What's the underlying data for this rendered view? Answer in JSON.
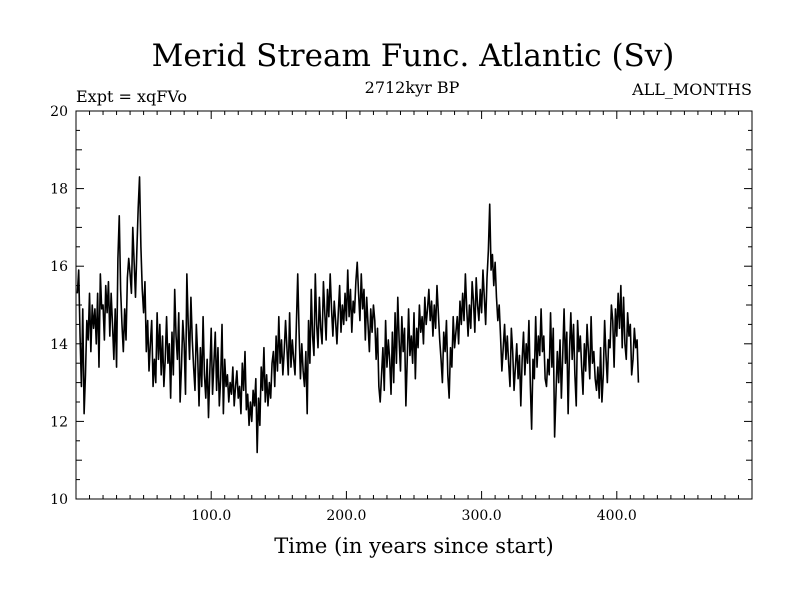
{
  "chart_data": {
    "type": "line",
    "title": "Merid Stream Func. Atlantic (Sv)",
    "experiment_label": "Expt = xqFVo",
    "period_label": "2712kyr BP",
    "months_label": "ALL_MONTHS",
    "xlabel": "Time (in years since start)",
    "ylabel": "",
    "xlim": [
      0,
      500
    ],
    "ylim": [
      10,
      20
    ],
    "x_ticks": [
      100,
      200,
      300,
      400
    ],
    "x_tick_labels": [
      "100.0",
      "200.0",
      "300.0",
      "400.0"
    ],
    "y_ticks": [
      10,
      12,
      14,
      16,
      18,
      20
    ],
    "y_tick_labels": [
      "10",
      "12",
      "14",
      "16",
      "18",
      "20"
    ],
    "series": [
      {
        "name": "Merid Stream Func. Atlantic",
        "x_start": 1,
        "x_step": 1,
        "values": [
          15.3,
          15.9,
          14.2,
          12.9,
          14.9,
          12.2,
          13.2,
          14.6,
          14.1,
          15.3,
          13.8,
          15.0,
          14.4,
          14.9,
          14.0,
          15.3,
          13.4,
          15.8,
          14.9,
          15.0,
          14.1,
          15.5,
          14.8,
          15.6,
          14.2,
          15.3,
          14.5,
          13.6,
          14.9,
          13.4,
          16.2,
          17.3,
          15.4,
          14.5,
          13.8,
          14.9,
          14.1,
          15.7,
          16.2,
          15.8,
          15.3,
          17.0,
          16.1,
          15.2,
          16.4,
          17.5,
          18.3,
          16.5,
          15.4,
          14.8,
          15.6,
          13.8,
          14.6,
          13.3,
          14.0,
          14.6,
          12.9,
          13.6,
          13.0,
          14.8,
          13.6,
          14.5,
          13.2,
          14.2,
          12.9,
          13.6,
          14.7,
          13.5,
          14.0,
          12.6,
          14.3,
          13.2,
          15.4,
          14.2,
          13.6,
          14.8,
          12.5,
          13.4,
          14.6,
          14.0,
          12.7,
          15.8,
          14.5,
          13.6,
          15.2,
          14.1,
          13.4,
          12.8,
          14.5,
          13.7,
          12.4,
          13.9,
          12.9,
          14.7,
          13.2,
          12.6,
          13.6,
          12.1,
          13.3,
          14.4,
          12.7,
          13.5,
          14.3,
          12.8,
          13.9,
          12.4,
          13.1,
          14.5,
          12.2,
          13.6,
          12.9,
          13.2,
          12.5,
          13.0,
          12.7,
          13.4,
          12.4,
          12.9,
          13.3,
          12.6,
          12.9,
          12.2,
          13.5,
          12.8,
          13.8,
          12.3,
          12.7,
          11.9,
          12.5,
          12.0,
          12.8,
          12.4,
          13.1,
          11.2,
          12.6,
          11.9,
          13.4,
          12.8,
          13.9,
          12.5,
          13.2,
          12.4,
          13.0,
          12.6,
          13.5,
          13.8,
          12.9,
          14.2,
          13.3,
          14.7,
          13.5,
          14.1,
          13.2,
          13.8,
          14.6,
          13.9,
          13.2,
          14.8,
          13.4,
          14.1,
          13.6,
          13.2,
          14.5,
          15.8,
          14.3,
          13.1,
          14.0,
          13.3,
          12.9,
          13.8,
          12.2,
          14.6,
          13.5,
          15.4,
          14.2,
          13.7,
          15.8,
          14.5,
          13.9,
          15.2,
          14.4,
          14.0,
          15.6,
          14.8,
          14.1,
          15.4,
          14.7,
          15.8,
          14.9,
          14.2,
          15.1,
          14.6,
          14.0,
          14.8,
          15.5,
          14.3,
          15.0,
          14.5,
          15.3,
          14.6,
          15.9,
          14.7,
          15.4,
          14.3,
          15.1,
          14.8,
          15.6,
          16.1,
          15.3,
          14.6,
          15.8,
          14.9,
          15.4,
          14.1,
          15.2,
          14.5,
          13.8,
          14.9,
          14.3,
          15.0,
          14.6,
          13.6,
          14.4,
          12.9,
          12.5,
          13.2,
          13.9,
          12.8,
          14.6,
          13.4,
          14.1,
          13.6,
          12.7,
          14.3,
          13.0,
          14.8,
          13.5,
          15.2,
          14.1,
          13.3,
          14.7,
          13.8,
          14.4,
          12.4,
          13.6,
          14.9,
          13.7,
          14.2,
          13.5,
          14.8,
          13.1,
          14.4,
          13.9,
          15.0,
          14.3,
          14.7,
          14.0,
          15.2,
          14.5,
          14.9,
          15.4,
          14.6,
          15.1,
          14.2,
          15.0,
          14.4,
          15.5,
          14.8,
          14.1,
          13.6,
          13.0,
          14.3,
          13.8,
          14.6,
          13.2,
          12.6,
          13.9,
          13.4,
          14.7,
          13.9,
          14.3,
          14.7,
          14.0,
          15.1,
          14.5,
          15.3,
          14.6,
          15.8,
          14.9,
          14.2,
          15.0,
          14.4,
          15.6,
          15.1,
          14.3,
          15.7,
          15.0,
          14.6,
          15.4,
          14.8,
          15.9,
          15.2,
          14.5,
          15.7,
          16.4,
          17.6,
          15.9,
          16.3,
          15.5,
          16.1,
          15.2,
          14.6,
          15.0,
          14.2,
          13.3,
          13.9,
          14.5,
          13.6,
          14.2,
          13.5,
          12.9,
          14.4,
          13.8,
          12.8,
          13.4,
          14.0,
          13.1,
          13.7,
          12.4,
          13.6,
          14.3,
          13.2,
          14.0,
          13.5,
          14.6,
          13.0,
          11.8,
          13.6,
          13.1,
          14.7,
          13.4,
          14.2,
          13.7,
          14.9,
          13.8,
          14.2,
          13.1,
          12.9,
          13.6,
          13.2,
          14.8,
          13.4,
          14.4,
          11.6,
          12.7,
          13.8,
          13.0,
          14.1,
          12.6,
          13.7,
          14.9,
          13.5,
          14.3,
          12.2,
          13.8,
          14.8,
          13.6,
          14.5,
          13.2,
          12.4,
          14.6,
          13.8,
          14.2,
          13.4,
          12.7,
          14.0,
          13.3,
          14.5,
          13.8,
          13.1,
          14.7,
          13.5,
          13.8,
          13.1,
          12.8,
          13.4,
          12.6,
          13.9,
          12.5,
          13.2,
          14.6,
          13.7,
          13.0,
          14.1,
          13.9,
          15.0,
          14.6,
          13.4,
          14.9,
          14.2,
          15.3,
          14.4,
          15.5,
          13.9,
          15.2,
          14.0,
          13.6,
          14.8,
          14.2,
          14.5,
          13.2,
          13.6,
          14.4,
          13.9,
          14.1,
          13.0
        ]
      }
    ]
  }
}
